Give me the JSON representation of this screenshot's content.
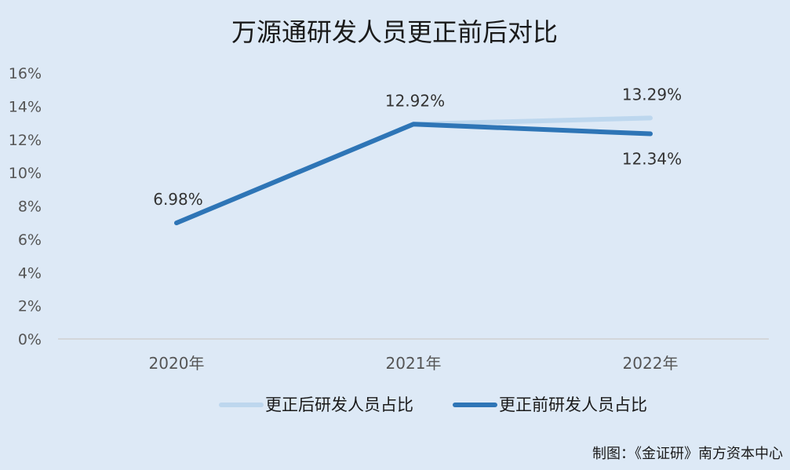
{
  "chart_data": {
    "type": "line",
    "title": "万源通研发人员更正前后对比",
    "categories": [
      "2020年",
      "2021年",
      "2022年"
    ],
    "series": [
      {
        "name": "更正后研发人员占比",
        "values": [
          6.98,
          12.92,
          13.29
        ],
        "labels": [
          "",
          "12.92%",
          "13.29%"
        ],
        "color": "#bdd7ee"
      },
      {
        "name": "更正前研发人员占比",
        "values": [
          6.98,
          12.92,
          12.34
        ],
        "labels": [
          "6.98%",
          "",
          "12.34%"
        ],
        "color": "#2e75b6"
      }
    ],
    "ylim": [
      0,
      16
    ],
    "yticks": [
      "0%",
      "2%",
      "4%",
      "6%",
      "8%",
      "10%",
      "12%",
      "14%",
      "16%"
    ],
    "grid": false,
    "legend_position": "bottom"
  },
  "source_credit": "制图：《金证研》南方资本中心",
  "colors": {
    "background": "#dde9f6",
    "axis": "#d0d0d0"
  }
}
